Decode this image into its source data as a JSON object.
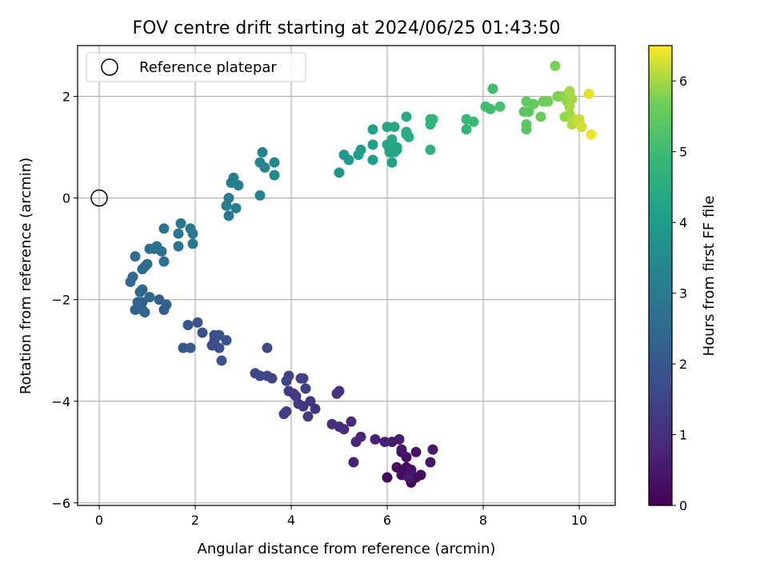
{
  "chart_data": {
    "type": "scatter",
    "title": "FOV centre drift starting at 2024/06/25 01:43:50",
    "xlabel": "Angular distance from reference (arcmin)",
    "ylabel": "Rotation from reference (arcmin)",
    "colorbar_label": "Hours from first FF file",
    "xlim": [
      -0.45,
      10.75
    ],
    "ylim": [
      -6.05,
      3.0
    ],
    "clim": [
      0,
      6.5
    ],
    "xticks": [
      0,
      2,
      4,
      6,
      8,
      10
    ],
    "yticks": [
      -6,
      -4,
      -2,
      0,
      2
    ],
    "cticks": [
      0,
      1,
      2,
      3,
      4,
      5,
      6
    ],
    "grid": true,
    "colormap": "viridis",
    "legend": {
      "placement": "upper-left",
      "label": "Reference platepar"
    },
    "reference_point": {
      "x": 0,
      "y": 0
    },
    "points": [
      [
        6.3,
        -5.0,
        0.1
      ],
      [
        6.5,
        -5.6,
        0.1
      ],
      [
        6.0,
        -5.5,
        0.15
      ],
      [
        6.2,
        -5.3,
        0.2
      ],
      [
        6.4,
        -5.3,
        0.2
      ],
      [
        6.6,
        -5.5,
        0.25
      ],
      [
        6.7,
        -5.45,
        0.25
      ],
      [
        6.3,
        -5.45,
        0.3
      ],
      [
        6.6,
        -5.0,
        0.35
      ],
      [
        6.4,
        -5.1,
        0.35
      ],
      [
        6.5,
        -5.35,
        0.4
      ],
      [
        6.3,
        -4.95,
        0.45
      ],
      [
        6.9,
        -5.2,
        0.45
      ],
      [
        6.95,
        -4.95,
        0.5
      ],
      [
        6.45,
        -5.5,
        0.5
      ],
      [
        6.1,
        -4.8,
        0.55
      ],
      [
        6.25,
        -4.75,
        0.6
      ],
      [
        5.95,
        -4.8,
        0.65
      ],
      [
        5.75,
        -4.75,
        0.7
      ],
      [
        5.3,
        -5.2,
        0.7
      ],
      [
        5.45,
        -4.7,
        0.75
      ],
      [
        5.35,
        -4.8,
        0.8
      ],
      [
        5.25,
        -4.4,
        0.85
      ],
      [
        5.1,
        -4.55,
        0.9
      ],
      [
        5.0,
        -4.5,
        0.95
      ],
      [
        4.85,
        -4.45,
        1.0
      ],
      [
        5.0,
        -3.8,
        1.05
      ],
      [
        4.95,
        -3.85,
        1.1
      ],
      [
        4.5,
        -4.15,
        1.1
      ],
      [
        4.4,
        -4.0,
        1.15
      ],
      [
        4.25,
        -4.1,
        1.2
      ],
      [
        4.35,
        -4.3,
        1.25
      ],
      [
        4.15,
        -4.05,
        1.2
      ],
      [
        4.1,
        -3.9,
        1.25
      ],
      [
        4.05,
        -3.85,
        1.3
      ],
      [
        3.95,
        -3.8,
        1.3
      ],
      [
        3.85,
        -4.25,
        1.35
      ],
      [
        3.9,
        -4.2,
        1.35
      ],
      [
        4.2,
        -3.55,
        1.4
      ],
      [
        4.3,
        -3.75,
        1.4
      ],
      [
        4.25,
        -3.55,
        1.45
      ],
      [
        3.95,
        -3.5,
        1.45
      ],
      [
        3.9,
        -3.6,
        1.5
      ],
      [
        3.6,
        -3.55,
        1.55
      ],
      [
        3.5,
        -3.5,
        1.55
      ],
      [
        3.25,
        -3.45,
        1.6
      ],
      [
        3.35,
        -3.5,
        1.6
      ],
      [
        3.5,
        -2.95,
        1.65
      ],
      [
        2.35,
        -2.9,
        1.7
      ],
      [
        2.4,
        -2.8,
        1.75
      ],
      [
        2.5,
        -2.7,
        1.75
      ],
      [
        2.5,
        -2.95,
        1.8
      ],
      [
        2.4,
        -2.7,
        1.8
      ],
      [
        2.65,
        -2.8,
        1.85
      ],
      [
        2.15,
        -2.65,
        1.85
      ],
      [
        2.55,
        -3.2,
        1.9
      ],
      [
        2.05,
        -2.45,
        1.95
      ],
      [
        1.85,
        -2.5,
        2.0
      ],
      [
        1.75,
        -2.95,
        2.0
      ],
      [
        1.9,
        -2.95,
        2.05
      ],
      [
        1.35,
        -2.2,
        2.1
      ],
      [
        1.25,
        -2.0,
        2.15
      ],
      [
        1.4,
        -2.1,
        2.2
      ],
      [
        0.75,
        -2.2,
        2.25
      ],
      [
        0.9,
        -2.05,
        2.25
      ],
      [
        0.9,
        -2.2,
        2.3
      ],
      [
        0.95,
        -2.25,
        2.3
      ],
      [
        0.8,
        -2.05,
        2.35
      ],
      [
        1.05,
        -1.95,
        2.35
      ],
      [
        0.9,
        -1.8,
        2.4
      ],
      [
        0.85,
        -1.85,
        2.4
      ],
      [
        0.7,
        -1.55,
        2.45
      ],
      [
        0.65,
        -1.65,
        2.5
      ],
      [
        0.75,
        -1.15,
        2.55
      ],
      [
        0.95,
        -1.35,
        2.55
      ],
      [
        0.9,
        -1.4,
        2.6
      ],
      [
        1.0,
        -1.3,
        2.6
      ],
      [
        1.15,
        -1.0,
        2.65
      ],
      [
        1.3,
        -1.05,
        2.65
      ],
      [
        1.35,
        -1.25,
        2.7
      ],
      [
        1.05,
        -1.0,
        2.7
      ],
      [
        1.2,
        -0.95,
        2.75
      ],
      [
        1.35,
        -0.6,
        2.8
      ],
      [
        1.65,
        -0.95,
        2.85
      ],
      [
        1.65,
        -0.7,
        2.85
      ],
      [
        1.7,
        -0.5,
        2.9
      ],
      [
        1.9,
        -0.6,
        2.9
      ],
      [
        1.95,
        -0.7,
        2.95
      ],
      [
        1.95,
        -0.9,
        2.95
      ],
      [
        2.7,
        -0.35,
        3.0
      ],
      [
        2.65,
        -0.15,
        3.05
      ],
      [
        2.7,
        0.0,
        3.05
      ],
      [
        2.85,
        -0.2,
        3.1
      ],
      [
        2.75,
        0.3,
        3.15
      ],
      [
        2.8,
        0.4,
        3.2
      ],
      [
        2.9,
        0.25,
        3.2
      ],
      [
        3.35,
        0.05,
        3.25
      ],
      [
        3.35,
        0.7,
        3.3
      ],
      [
        3.45,
        0.6,
        3.35
      ],
      [
        3.4,
        0.9,
        3.4
      ],
      [
        3.65,
        0.7,
        3.45
      ],
      [
        3.65,
        0.45,
        3.5
      ],
      [
        5.0,
        0.5,
        3.75
      ],
      [
        5.2,
        0.75,
        3.9
      ],
      [
        5.1,
        0.85,
        3.9
      ],
      [
        5.4,
        0.85,
        4.0
      ],
      [
        5.45,
        0.95,
        4.0
      ],
      [
        5.7,
        0.75,
        4.05
      ],
      [
        5.7,
        1.05,
        4.1
      ],
      [
        5.7,
        1.35,
        4.15
      ],
      [
        6.1,
        0.7,
        4.15
      ],
      [
        6.05,
        1.05,
        4.2
      ],
      [
        6.0,
        1.4,
        4.25
      ],
      [
        6.2,
        0.95,
        4.3
      ],
      [
        6.1,
        1.15,
        4.35
      ],
      [
        6.15,
        1.4,
        4.35
      ],
      [
        6.05,
        0.95,
        4.3
      ],
      [
        6.0,
        1.05,
        4.4
      ],
      [
        6.15,
        0.9,
        4.45
      ],
      [
        6.4,
        1.25,
        4.45
      ],
      [
        6.4,
        1.6,
        4.5
      ],
      [
        6.45,
        1.2,
        4.55
      ],
      [
        6.9,
        0.95,
        4.65
      ],
      [
        6.9,
        1.45,
        4.7
      ],
      [
        6.95,
        1.55,
        4.75
      ],
      [
        7.65,
        1.35,
        4.85
      ],
      [
        7.65,
        1.55,
        4.9
      ],
      [
        7.8,
        1.5,
        4.95
      ],
      [
        8.05,
        1.8,
        5.0
      ],
      [
        8.15,
        1.75,
        5.05
      ],
      [
        8.2,
        2.15,
        5.1
      ],
      [
        8.35,
        1.8,
        5.15
      ],
      [
        8.9,
        1.35,
        5.35
      ],
      [
        8.9,
        1.45,
        5.4
      ],
      [
        8.85,
        1.7,
        5.45
      ],
      [
        8.95,
        1.7,
        5.45
      ],
      [
        8.9,
        1.9,
        5.5
      ],
      [
        9.05,
        1.85,
        5.55
      ],
      [
        9.2,
        1.6,
        5.6
      ],
      [
        9.25,
        1.9,
        5.65
      ],
      [
        9.35,
        1.9,
        5.65
      ],
      [
        9.55,
        2.0,
        5.75
      ],
      [
        9.6,
        2.0,
        5.8
      ],
      [
        9.7,
        2.0,
        5.85
      ],
      [
        9.75,
        1.9,
        5.9
      ],
      [
        9.7,
        1.6,
        5.9
      ],
      [
        9.8,
        1.65,
        5.95
      ],
      [
        9.8,
        1.8,
        6.0
      ],
      [
        9.85,
        1.95,
        6.0
      ],
      [
        9.85,
        1.45,
        6.05
      ],
      [
        9.9,
        1.55,
        6.1
      ],
      [
        10.0,
        1.5,
        6.15
      ],
      [
        10.0,
        1.55,
        6.2
      ],
      [
        10.05,
        1.4,
        6.25
      ],
      [
        10.2,
        2.05,
        6.35
      ],
      [
        10.25,
        1.25,
        6.4
      ],
      [
        9.8,
        2.1,
        6.0
      ],
      [
        9.5,
        2.6,
        5.75
      ],
      [
        6.9,
        1.55,
        4.8
      ],
      [
        6.4,
        1.3,
        4.5
      ],
      [
        6.05,
        0.9,
        4.25
      ],
      [
        6.2,
        1.0,
        4.3
      ],
      [
        6.1,
        0.95,
        4.2
      ]
    ]
  }
}
